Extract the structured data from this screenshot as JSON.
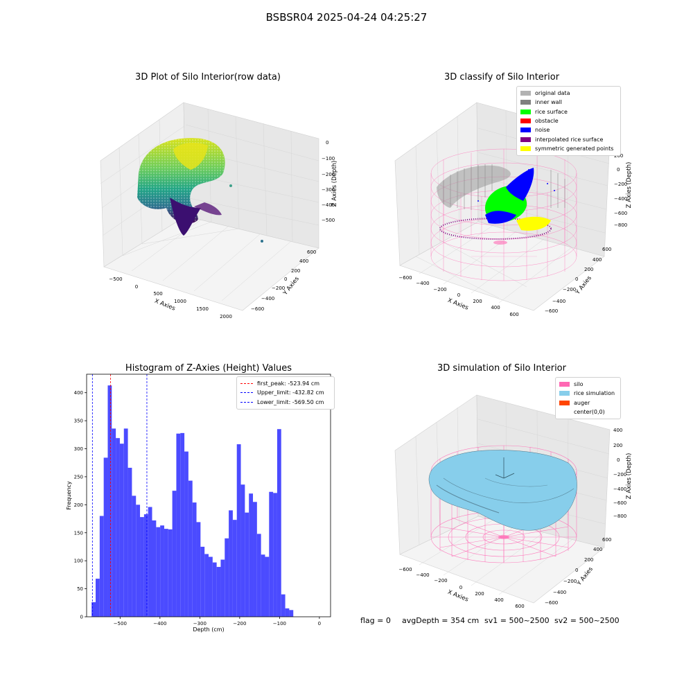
{
  "suptitle": "BSBSR04 2025-04-24 04:25:27",
  "chart_data": [
    {
      "type": "scatter",
      "title": "3D Plot of Silo Interior(row data)",
      "xlabel": "X Axies",
      "ylabel": "Y Axies",
      "zlabel": "Z Axies (Depth)",
      "x_ticks": [
        "−500",
        "0",
        "500",
        "1000",
        "1500",
        "2000"
      ],
      "y_ticks": [
        "−600",
        "−400",
        "−200",
        "0",
        "200",
        "400",
        "600"
      ],
      "z_ticks": [
        "0",
        "−100",
        "−200",
        "−300",
        "−400",
        "−500"
      ]
    },
    {
      "type": "scatter",
      "title": "3D classify of Silo Interior",
      "xlabel": "X Axies",
      "ylabel": "Y Axies",
      "zlabel": "Z Axies (Depth)",
      "x_ticks": [
        "−600",
        "−400",
        "−200",
        "0",
        "200",
        "400",
        "600"
      ],
      "y_ticks": [
        "−600",
        "−400",
        "−200",
        "0",
        "200",
        "400",
        "600"
      ],
      "z_ticks": [
        "200",
        "0",
        "−200",
        "−400",
        "−600",
        "−800"
      ],
      "legend": [
        {
          "label": "original data",
          "color": "#b2b2b2"
        },
        {
          "label": "inner wall",
          "color": "#808080"
        },
        {
          "label": "rice surface",
          "color": "#00ff00"
        },
        {
          "label": "obstacle",
          "color": "#ff0000"
        },
        {
          "label": "noise",
          "color": "#0000ff"
        },
        {
          "label": "interpolated rice surface",
          "color": "#800080"
        },
        {
          "label": "symmetric generated points",
          "color": "#ffff00"
        }
      ]
    },
    {
      "type": "bar",
      "title": "Histogram of Z-Axies (Height) Values",
      "xlabel": "Depth (cm)",
      "ylabel": "Frequency",
      "bar_color": "#4b4bff",
      "x_range": [
        -584,
        28
      ],
      "y_range": [
        0,
        433
      ],
      "x_ticks": [
        -500,
        -400,
        -300,
        -200,
        -100,
        0
      ],
      "x_tick_labels": [
        "−500",
        "−400",
        "−300",
        "−200",
        "−100",
        "0"
      ],
      "y_ticks": [
        0,
        50,
        100,
        150,
        200,
        250,
        300,
        350,
        400
      ],
      "bin_start": -571.5,
      "bin_width": 10.12,
      "values": [
        26,
        68,
        180,
        284,
        413,
        336,
        319,
        309,
        336,
        266,
        216,
        200,
        178,
        183,
        196,
        172,
        160,
        163,
        157,
        156,
        225,
        327,
        328,
        295,
        243,
        204,
        169,
        125,
        112,
        107,
        97,
        89,
        102,
        140,
        190,
        173,
        308,
        236,
        186,
        220,
        205,
        148,
        111,
        107,
        223,
        221,
        335,
        40,
        15,
        12
      ],
      "vlines": [
        {
          "label": "first_peak: -523.94 cm",
          "x": -523.94,
          "color": "#ff0000"
        },
        {
          "label": "Upper_limit: -432.82 cm",
          "x": -432.82,
          "color": "#0000ff"
        },
        {
          "label": "Lower_limit: -569.50 cm",
          "x": -569.5,
          "color": "#0000ff"
        }
      ]
    },
    {
      "type": "area",
      "title": "3D simulation of Silo Interior",
      "xlabel": "X Axies",
      "ylabel": "Y Axies",
      "zlabel": "Z Axies (Depth)",
      "x_ticks": [
        "−600",
        "−400",
        "−200",
        "0",
        "200",
        "400",
        "600"
      ],
      "y_ticks": [
        "−600",
        "−400",
        "−200",
        "0",
        "200",
        "400",
        "600"
      ],
      "z_ticks": [
        "400",
        "200",
        "0",
        "−200",
        "−400",
        "−600",
        "−800"
      ],
      "legend": [
        {
          "label": "silo",
          "color": "#ff69b4"
        },
        {
          "label": "rice simulation",
          "color": "#87ceeb"
        },
        {
          "label": "auger",
          "color": "#ff4500"
        },
        {
          "label": "center(0,0)",
          "color": ""
        }
      ]
    }
  ],
  "info": {
    "flag": "flag = 0",
    "avg": "avgDepth = 354 cm",
    "sv1": "sv1 = 500~2500",
    "sv2": "sv2 = 500~2500"
  },
  "colors": {
    "pane": "#f2f2f2",
    "grid": "#d6d6d6",
    "silo": "#ff69b4",
    "rice": "#87ceeb"
  }
}
